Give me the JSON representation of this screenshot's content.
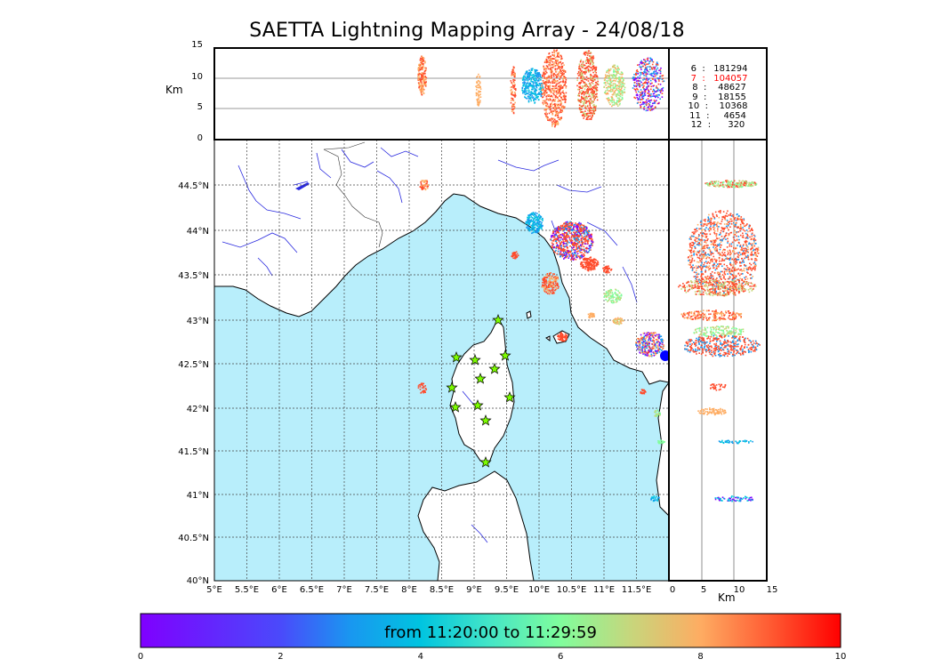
{
  "title": "SAETTA Lightning Mapping Array - 24/08/18",
  "map_panel": {
    "lon_ticks": [
      "5°E",
      "5.5°E",
      "6°E",
      "6.5°E",
      "7°E",
      "7.5°E",
      "8°E",
      "8.5°E",
      "9°E",
      "9.5°E",
      "10°E",
      "10.5°E",
      "11°E",
      "11.5°E"
    ],
    "lat_ticks": [
      "40°N",
      "40.5°N",
      "41°N",
      "41.5°N",
      "42°N",
      "42.5°N",
      "43°N",
      "43.5°N",
      "44°N",
      "44.5°N"
    ],
    "sea_color": "#b8eefb",
    "land_color": "#ffffff",
    "river_color": "#2a2adf",
    "station_marker_color": "#7cfc00"
  },
  "top_panel": {
    "ylabel": "Km",
    "y_ticks": [
      "0",
      "5",
      "10",
      "15"
    ]
  },
  "right_panel": {
    "xlabel": "Km",
    "x_ticks": [
      "0",
      "5",
      "10",
      "15"
    ]
  },
  "altitude_counts": [
    {
      "km": "6",
      "count": "181294",
      "highlight": false
    },
    {
      "km": "7",
      "count": "104057",
      "highlight": true
    },
    {
      "km": "8",
      "count": "48627",
      "highlight": false
    },
    {
      "km": "9",
      "count": "18155",
      "highlight": false
    },
    {
      "km": "10",
      "count": "10368",
      "highlight": false
    },
    {
      "km": "11",
      "count": "4654",
      "highlight": false
    },
    {
      "km": "12",
      "count": "320",
      "highlight": false
    }
  ],
  "colorbar": {
    "label": "from 11:20:00 to 11:29:59",
    "ticks": [
      "0",
      "2",
      "4",
      "6",
      "8",
      "10"
    ],
    "colormap": "rainbow",
    "range": [
      0,
      10
    ]
  }
}
